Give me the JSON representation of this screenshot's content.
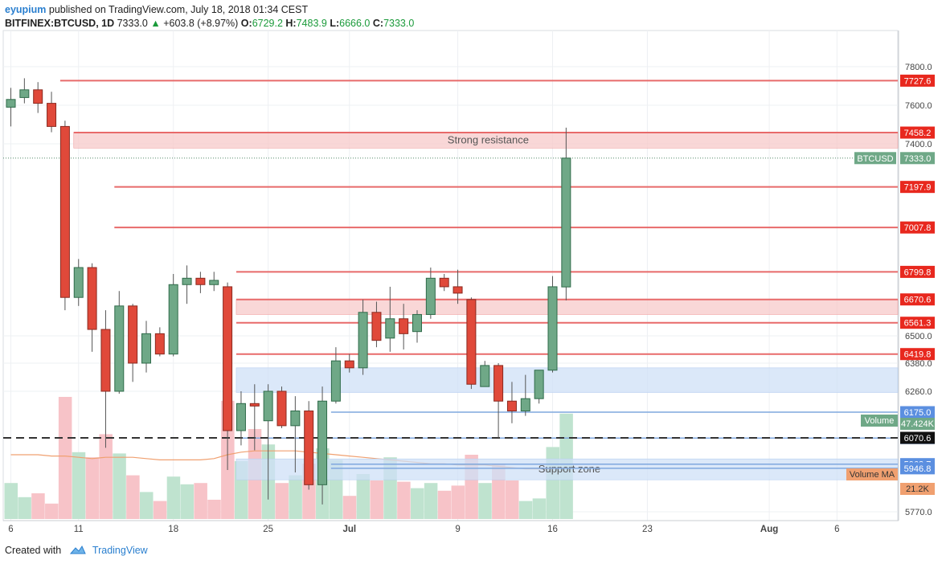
{
  "header": {
    "user": "eyupium",
    "published_text": "published on TradingView.com, July 18, 2018 01:34 CEST",
    "symbol": "BITFINEX:BTCUSD, 1D",
    "last": "7333.0",
    "change": "+603.8 (+8.97%)",
    "open_label": "O:",
    "open": "6729.2",
    "high_label": "H:",
    "high": "7483.9",
    "low_label": "L:",
    "low": "6666.0",
    "close_label": "C:",
    "close": "7333.0"
  },
  "footer": {
    "created_with": "Created with",
    "brand": "TradingView"
  },
  "colors": {
    "up": "#6fa887",
    "up_border": "#2f6b4a",
    "down": "#e0493a",
    "down_border": "#8a2a20",
    "resistance_line": "#e86a6a",
    "resistance_zone": "#f7c9c9",
    "support_zone": "#cfe0f7",
    "support_line": "#7fa7de",
    "volume_up": "#bfe3cf",
    "volume_down": "#f7c3c8",
    "volume_ma": "#f0a070",
    "accent_green": "#1a9a3a",
    "brand_blue": "#2a7fcf"
  },
  "chart_data": {
    "type": "candlestick",
    "symbol": "BITFINEX:BTCUSD",
    "interval": "1D",
    "ylim": [
      5700,
      7900
    ],
    "y_ticks": [
      7800.0,
      7600.0,
      7400.0,
      6500.0,
      6380.0,
      6260.0,
      5770.0
    ],
    "y_tick_labels": [
      "7800.0",
      "7600.0",
      "7400.0",
      "6500.0",
      "6380.0",
      "6260.0",
      "5770.0"
    ],
    "x_tick_labels": [
      "6",
      "11",
      "18",
      "25",
      "Jul",
      "9",
      "16",
      "23",
      "Aug",
      "6"
    ],
    "x_tick_days": [
      0,
      5,
      12,
      19,
      25,
      33,
      40,
      47,
      56,
      61
    ],
    "candles": [
      {
        "day": 0,
        "o": 7590,
        "h": 7690,
        "l": 7490,
        "c": 7630
      },
      {
        "day": 1,
        "o": 7640,
        "h": 7740,
        "l": 7610,
        "c": 7680
      },
      {
        "day": 2,
        "o": 7680,
        "h": 7720,
        "l": 7560,
        "c": 7610
      },
      {
        "day": 3,
        "o": 7610,
        "h": 7670,
        "l": 7460,
        "c": 7490
      },
      {
        "day": 4,
        "o": 7490,
        "h": 7520,
        "l": 6620,
        "c": 6680
      },
      {
        "day": 5,
        "o": 6680,
        "h": 6860,
        "l": 6640,
        "c": 6820
      },
      {
        "day": 6,
        "o": 6820,
        "h": 6840,
        "l": 6430,
        "c": 6530
      },
      {
        "day": 7,
        "o": 6530,
        "h": 6620,
        "l": 6030,
        "c": 6260
      },
      {
        "day": 8,
        "o": 6260,
        "h": 6710,
        "l": 6250,
        "c": 6640
      },
      {
        "day": 9,
        "o": 6640,
        "h": 6650,
        "l": 6300,
        "c": 6380
      },
      {
        "day": 10,
        "o": 6380,
        "h": 6570,
        "l": 6340,
        "c": 6510
      },
      {
        "day": 11,
        "o": 6510,
        "h": 6540,
        "l": 6410,
        "c": 6420
      },
      {
        "day": 12,
        "o": 6420,
        "h": 6790,
        "l": 6410,
        "c": 6740
      },
      {
        "day": 13,
        "o": 6740,
        "h": 6830,
        "l": 6650,
        "c": 6770
      },
      {
        "day": 14,
        "o": 6770,
        "h": 6800,
        "l": 6700,
        "c": 6740
      },
      {
        "day": 15,
        "o": 6740,
        "h": 6800,
        "l": 6710,
        "c": 6760
      },
      {
        "day": 16,
        "o": 6730,
        "h": 6750,
        "l": 5940,
        "c": 6100
      },
      {
        "day": 17,
        "o": 6100,
        "h": 6260,
        "l": 6040,
        "c": 6210
      },
      {
        "day": 18,
        "o": 6210,
        "h": 6290,
        "l": 6020,
        "c": 6200
      },
      {
        "day": 19,
        "o": 6140,
        "h": 6290,
        "l": 5820,
        "c": 6260
      },
      {
        "day": 20,
        "o": 6260,
        "h": 6280,
        "l": 6110,
        "c": 6120
      },
      {
        "day": 21,
        "o": 6120,
        "h": 6240,
        "l": 5930,
        "c": 6180
      },
      {
        "day": 22,
        "o": 6180,
        "h": 6220,
        "l": 5860,
        "c": 5880
      },
      {
        "day": 23,
        "o": 5880,
        "h": 6280,
        "l": 5800,
        "c": 6220
      },
      {
        "day": 24,
        "o": 6220,
        "h": 6450,
        "l": 6210,
        "c": 6390
      },
      {
        "day": 25,
        "o": 6390,
        "h": 6420,
        "l": 6340,
        "c": 6360
      },
      {
        "day": 26,
        "o": 6360,
        "h": 6670,
        "l": 6330,
        "c": 6610
      },
      {
        "day": 27,
        "o": 6610,
        "h": 6660,
        "l": 6450,
        "c": 6480
      },
      {
        "day": 28,
        "o": 6490,
        "h": 6730,
        "l": 6430,
        "c": 6580
      },
      {
        "day": 29,
        "o": 6580,
        "h": 6650,
        "l": 6440,
        "c": 6510
      },
      {
        "day": 30,
        "o": 6520,
        "h": 6620,
        "l": 6470,
        "c": 6600
      },
      {
        "day": 31,
        "o": 6600,
        "h": 6820,
        "l": 6580,
        "c": 6770
      },
      {
        "day": 32,
        "o": 6770,
        "h": 6790,
        "l": 6710,
        "c": 6730
      },
      {
        "day": 33,
        "o": 6730,
        "h": 6810,
        "l": 6650,
        "c": 6700
      },
      {
        "day": 34,
        "o": 6670,
        "h": 6680,
        "l": 6270,
        "c": 6290
      },
      {
        "day": 35,
        "o": 6280,
        "h": 6390,
        "l": 6280,
        "c": 6370
      },
      {
        "day": 36,
        "o": 6370,
        "h": 6380,
        "l": 6070,
        "c": 6220
      },
      {
        "day": 37,
        "o": 6220,
        "h": 6300,
        "l": 6130,
        "c": 6180
      },
      {
        "day": 38,
        "o": 6180,
        "h": 6330,
        "l": 6160,
        "c": 6230
      },
      {
        "day": 39,
        "o": 6230,
        "h": 6350,
        "l": 6210,
        "c": 6350
      },
      {
        "day": 40,
        "o": 6350,
        "h": 6780,
        "l": 6340,
        "c": 6730
      },
      {
        "day": 41,
        "o": 6729.2,
        "h": 7483.9,
        "l": 6666.0,
        "c": 7333.0
      }
    ],
    "volume": [
      {
        "day": 0,
        "v": 0.28,
        "up": true
      },
      {
        "day": 1,
        "v": 0.17,
        "up": true
      },
      {
        "day": 2,
        "v": 0.2,
        "up": false
      },
      {
        "day": 3,
        "v": 0.12,
        "up": false
      },
      {
        "day": 4,
        "v": 0.95,
        "up": false
      },
      {
        "day": 5,
        "v": 0.52,
        "up": true
      },
      {
        "day": 6,
        "v": 0.48,
        "up": false
      },
      {
        "day": 7,
        "v": 0.66,
        "up": false
      },
      {
        "day": 8,
        "v": 0.51,
        "up": true
      },
      {
        "day": 9,
        "v": 0.34,
        "up": false
      },
      {
        "day": 10,
        "v": 0.21,
        "up": true
      },
      {
        "day": 11,
        "v": 0.14,
        "up": false
      },
      {
        "day": 12,
        "v": 0.33,
        "up": true
      },
      {
        "day": 13,
        "v": 0.27,
        "up": true
      },
      {
        "day": 14,
        "v": 0.28,
        "up": false
      },
      {
        "day": 15,
        "v": 0.15,
        "up": false
      },
      {
        "day": 16,
        "v": 0.92,
        "up": false
      },
      {
        "day": 17,
        "v": 0.45,
        "up": true
      },
      {
        "day": 18,
        "v": 0.7,
        "up": false
      },
      {
        "day": 19,
        "v": 0.58,
        "up": true
      },
      {
        "day": 20,
        "v": 0.28,
        "up": false
      },
      {
        "day": 21,
        "v": 0.34,
        "up": true
      },
      {
        "day": 22,
        "v": 0.43,
        "up": false
      },
      {
        "day": 23,
        "v": 0.55,
        "up": true
      },
      {
        "day": 24,
        "v": 0.46,
        "up": true
      },
      {
        "day": 25,
        "v": 0.18,
        "up": false
      },
      {
        "day": 26,
        "v": 0.35,
        "up": true
      },
      {
        "day": 27,
        "v": 0.3,
        "up": false
      },
      {
        "day": 28,
        "v": 0.48,
        "up": true
      },
      {
        "day": 29,
        "v": 0.29,
        "up": false
      },
      {
        "day": 30,
        "v": 0.24,
        "up": true
      },
      {
        "day": 31,
        "v": 0.28,
        "up": true
      },
      {
        "day": 32,
        "v": 0.22,
        "up": false
      },
      {
        "day": 33,
        "v": 0.26,
        "up": false
      },
      {
        "day": 34,
        "v": 0.5,
        "up": false
      },
      {
        "day": 35,
        "v": 0.28,
        "up": true
      },
      {
        "day": 36,
        "v": 0.43,
        "up": false
      },
      {
        "day": 37,
        "v": 0.3,
        "up": false
      },
      {
        "day": 38,
        "v": 0.14,
        "up": true
      },
      {
        "day": 39,
        "v": 0.16,
        "up": true
      },
      {
        "day": 40,
        "v": 0.56,
        "up": true
      },
      {
        "day": 41,
        "v": 0.82,
        "up": true
      }
    ],
    "volume_ma": [
      0.5,
      0.5,
      0.5,
      0.49,
      0.49,
      0.48,
      0.47,
      0.48,
      0.48,
      0.48,
      0.47,
      0.46,
      0.46,
      0.46,
      0.46,
      0.47,
      0.5,
      0.52,
      0.53,
      0.53,
      0.53,
      0.53,
      0.52,
      0.51,
      0.5,
      0.49,
      0.48,
      0.47,
      0.46,
      0.45,
      0.44,
      0.43,
      0.43,
      0.42,
      0.42,
      0.42,
      0.41,
      0.4,
      0.39,
      0.39,
      0.39,
      0.4
    ],
    "resistance_lines": [
      {
        "value": 7727.6,
        "label": "7727.6",
        "from_day": 4
      },
      {
        "value": 7458.2,
        "label": "7458.2",
        "from_day": 5
      },
      {
        "value": 7197.9,
        "label": "7197.9",
        "from_day": 8
      },
      {
        "value": 7007.8,
        "label": "7007.8",
        "from_day": 8
      },
      {
        "value": 6799.8,
        "label": "6799.8",
        "from_day": 17
      },
      {
        "value": 6670.6,
        "label": "6670.6",
        "from_day": 17
      },
      {
        "value": 6561.3,
        "label": "6561.3",
        "from_day": 17
      },
      {
        "value": 6419.8,
        "label": "6419.8",
        "from_day": 17
      }
    ],
    "support_lines": [
      {
        "value": 6175.0,
        "label": "6175.0",
        "from_day": 24
      },
      {
        "value": 6069.8,
        "label": "6069.8",
        "from_day": 17
      },
      {
        "value": 5963.7,
        "label": "5963.7",
        "from_day": 24
      },
      {
        "value": 5946.8,
        "label": "5946.8",
        "from_day": 24
      }
    ],
    "dashed_line": {
      "value": 6070.6,
      "label": "6070.6"
    },
    "current_price": {
      "value": 7333.0,
      "symbol_label": "BTCUSD",
      "label": "7333.0"
    },
    "zones": [
      {
        "name": "Strong resistance",
        "low": 7380,
        "high": 7460,
        "from_day": 5,
        "kind": "resistance"
      },
      {
        "name": "",
        "low": 6600,
        "high": 6670,
        "from_day": 17,
        "kind": "resistance"
      },
      {
        "name": "",
        "low": 6255,
        "high": 6360,
        "from_day": 17,
        "kind": "support"
      },
      {
        "name": "Support zone",
        "low": 5900,
        "high": 5985,
        "from_day": 17,
        "kind": "support"
      }
    ],
    "volume_badge": {
      "label": "Volume",
      "value": "47.424K"
    },
    "volume_ma_badge": {
      "label": "Volume MA",
      "value": "21.2K"
    }
  }
}
